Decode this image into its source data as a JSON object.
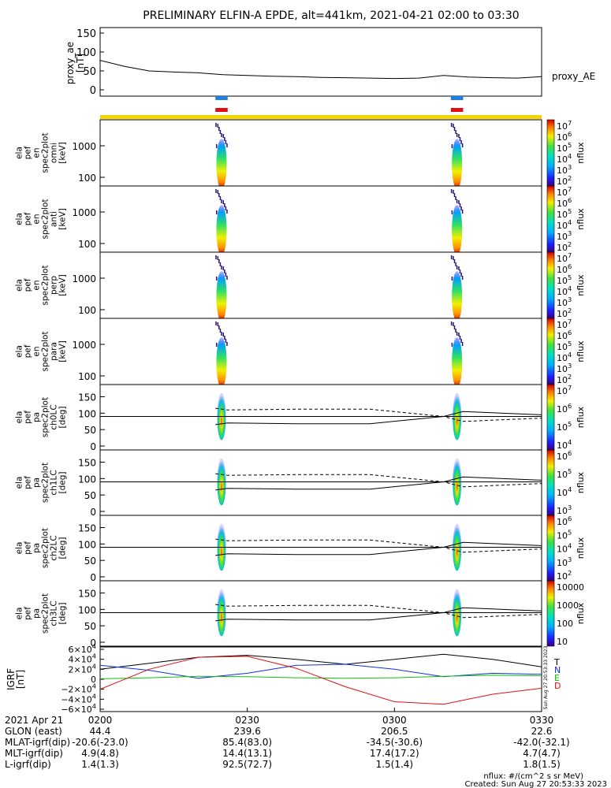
{
  "title": "PRELIMINARY ELFIN-A EPDE, alt=441km, 2021-04-21 02:00 to 03:30",
  "colors": {
    "proxy_bar": "#f5d400",
    "ibo_blue": "#1e7fe0",
    "ibo_red": "#e01010",
    "grf_T": "#000000",
    "grf_N": "#1030e0",
    "grf_E": "#10c010",
    "grf_D": "#e01010"
  },
  "panels": {
    "proxy_ae": {
      "ylabel": "proxy_ae\n[nT]",
      "yticks": [
        "150",
        "100",
        "50",
        "0"
      ],
      "ylim": [
        0,
        150
      ],
      "legend": "proxy_AE"
    },
    "spectra": [
      {
        "ylabel": [
          "ela",
          "pef",
          "en",
          "spec2plot",
          "omni",
          "[keV]"
        ],
        "yticks": [
          "1000",
          "100"
        ],
        "cbar_ticks": [
          "10^7",
          "10^6",
          "10^5",
          "10^4",
          "10^3",
          "10^2"
        ],
        "cbar_label": "nflux"
      },
      {
        "ylabel": [
          "ela",
          "pef",
          "en",
          "spec2plot",
          "anti",
          "[keV]"
        ],
        "yticks": [
          "1000",
          "100"
        ],
        "cbar_ticks": [
          "10^7",
          "10^6",
          "10^5",
          "10^4",
          "10^3",
          "10^2"
        ],
        "cbar_label": "nflux"
      },
      {
        "ylabel": [
          "ela",
          "pef",
          "en",
          "spec2plot",
          "perp",
          "[keV]"
        ],
        "yticks": [
          "1000",
          "100"
        ],
        "cbar_ticks": [
          "10^7",
          "10^6",
          "10^5",
          "10^4",
          "10^3",
          "10^2"
        ],
        "cbar_label": "nflux"
      },
      {
        "ylabel": [
          "ela",
          "pef",
          "en",
          "spec2plot",
          "para",
          "[keV]"
        ],
        "yticks": [
          "1000",
          "100"
        ],
        "cbar_ticks": [
          "10^7",
          "10^6",
          "10^5",
          "10^4",
          "10^3",
          "10^2"
        ],
        "cbar_label": "nflux"
      }
    ],
    "pitch": [
      {
        "ylabel": [
          "ela",
          "pef",
          "pa",
          "spec2plot",
          "ch0LC",
          "[deg]"
        ],
        "yticks": [
          "150",
          "100",
          "50",
          "0"
        ],
        "cbar_ticks": [
          "10^7",
          "10^6",
          "10^5",
          "10^4"
        ],
        "cbar_label": "nflux"
      },
      {
        "ylabel": [
          "ela",
          "pef",
          "pa",
          "spec2plot",
          "ch1LC",
          "[deg]"
        ],
        "yticks": [
          "150",
          "100",
          "50",
          "0"
        ],
        "cbar_ticks": [
          "10^6",
          "10^5",
          "10^4",
          "10^3"
        ],
        "cbar_label": "nflux"
      },
      {
        "ylabel": [
          "ela",
          "pef",
          "pa",
          "spec2plot",
          "ch2LC",
          "[deg]"
        ],
        "yticks": [
          "150",
          "100",
          "50",
          "0"
        ],
        "cbar_ticks": [
          "10^6",
          "10^5",
          "10^4",
          "10^3",
          "10^2"
        ],
        "cbar_label": "nflux"
      },
      {
        "ylabel": [
          "ela",
          "pef",
          "pa",
          "spec2plot",
          "ch3LC",
          "[deg]"
        ],
        "yticks": [
          "150",
          "100",
          "50",
          "0"
        ],
        "cbar_ticks": [
          "10000",
          "1000",
          "100",
          "10"
        ],
        "cbar_label": "nflux"
      }
    ],
    "grf": {
      "ylabel": "IGRF\n[nT]",
      "yticks": [
        "6×10^4",
        "4×10^4",
        "2×10^4",
        "0",
        "−2×10^4",
        "−4×10^4",
        "−6×10^4"
      ],
      "legend": [
        "T",
        "N",
        "E",
        "D"
      ],
      "side_note": "Sun Aug 27 20:53:33 2023"
    }
  },
  "chart_data": {
    "type": "line",
    "title": "PRELIMINARY ELFIN-A EPDE, alt=441km, 2021-04-21 02:00 to 03:30",
    "x_units": "minutes after 02:00 UT",
    "xlim": [
      0,
      90
    ],
    "series": [
      {
        "name": "proxy_AE",
        "x": [
          0,
          5,
          10,
          15,
          20,
          25,
          30,
          35,
          40,
          45,
          50,
          55,
          60,
          65,
          70,
          75,
          80,
          85,
          90
        ],
        "y": [
          78,
          62,
          50,
          47,
          45,
          40,
          38,
          36,
          35,
          33,
          32,
          31,
          30,
          31,
          38,
          34,
          32,
          31,
          35
        ]
      },
      {
        "name": "T",
        "x": [
          0,
          10,
          20,
          30,
          40,
          50,
          60,
          70,
          80,
          90
        ],
        "y": [
          20000,
          32000,
          44000,
          48000,
          40000,
          30000,
          40000,
          50000,
          40000,
          25000
        ]
      },
      {
        "name": "N",
        "x": [
          0,
          10,
          20,
          30,
          40,
          50,
          60,
          70,
          80,
          90
        ],
        "y": [
          28000,
          18000,
          2000,
          12000,
          28000,
          30000,
          20000,
          5000,
          12000,
          10000
        ]
      },
      {
        "name": "E",
        "x": [
          0,
          10,
          20,
          30,
          40,
          50,
          60,
          70,
          80,
          90
        ],
        "y": [
          1000,
          3000,
          6000,
          5000,
          3000,
          2000,
          3000,
          6000,
          8000,
          7000
        ]
      },
      {
        "name": "D",
        "x": [
          0,
          10,
          20,
          30,
          40,
          50,
          60,
          70,
          80,
          90
        ],
        "y": [
          -20000,
          20000,
          44000,
          46000,
          22000,
          -15000,
          -45000,
          -50000,
          -30000,
          -18000
        ]
      }
    ],
    "science_zones": [
      [
        23.5,
        26.0
      ],
      [
        71.5,
        74.0
      ]
    ],
    "y_pa_loss_cone": [
      {
        "x": [
          23.5,
          26,
          40,
          55,
          70,
          74,
          90
        ],
        "y": [
          65,
          70,
          68,
          68,
          90,
          105,
          95
        ]
      }
    ]
  },
  "xaxis": {
    "rows": [
      {
        "label": "2021 Apr 21",
        "values": [
          "0200",
          "0230",
          "0300",
          "0330"
        ]
      },
      {
        "label": "GLON (east)",
        "values": [
          "44.4",
          "239.6",
          "206.5",
          "22.6"
        ]
      },
      {
        "label": "MLAT-igrf(dip)",
        "values": [
          "-20.6(-23.0)",
          "85.4(83.0)",
          "-34.5(-30.6)",
          "-42.0(-32.1)"
        ]
      },
      {
        "label": "MLT-igrf(dip)",
        "values": [
          "4.9(4.8)",
          "14.4(13.1)",
          "17.4(17.2)",
          "4.7(4.7)"
        ]
      },
      {
        "label": "L-igrf(dip)",
        "values": [
          "1.4(1.3)",
          "92.5(72.7)",
          "1.5(1.4)",
          "1.8(1.5)"
        ]
      }
    ]
  },
  "footer": {
    "nflux": "nflux: #/(cm^2 s sr MeV)",
    "created": "Created: Sun Aug 27 20:53:33 2023"
  }
}
